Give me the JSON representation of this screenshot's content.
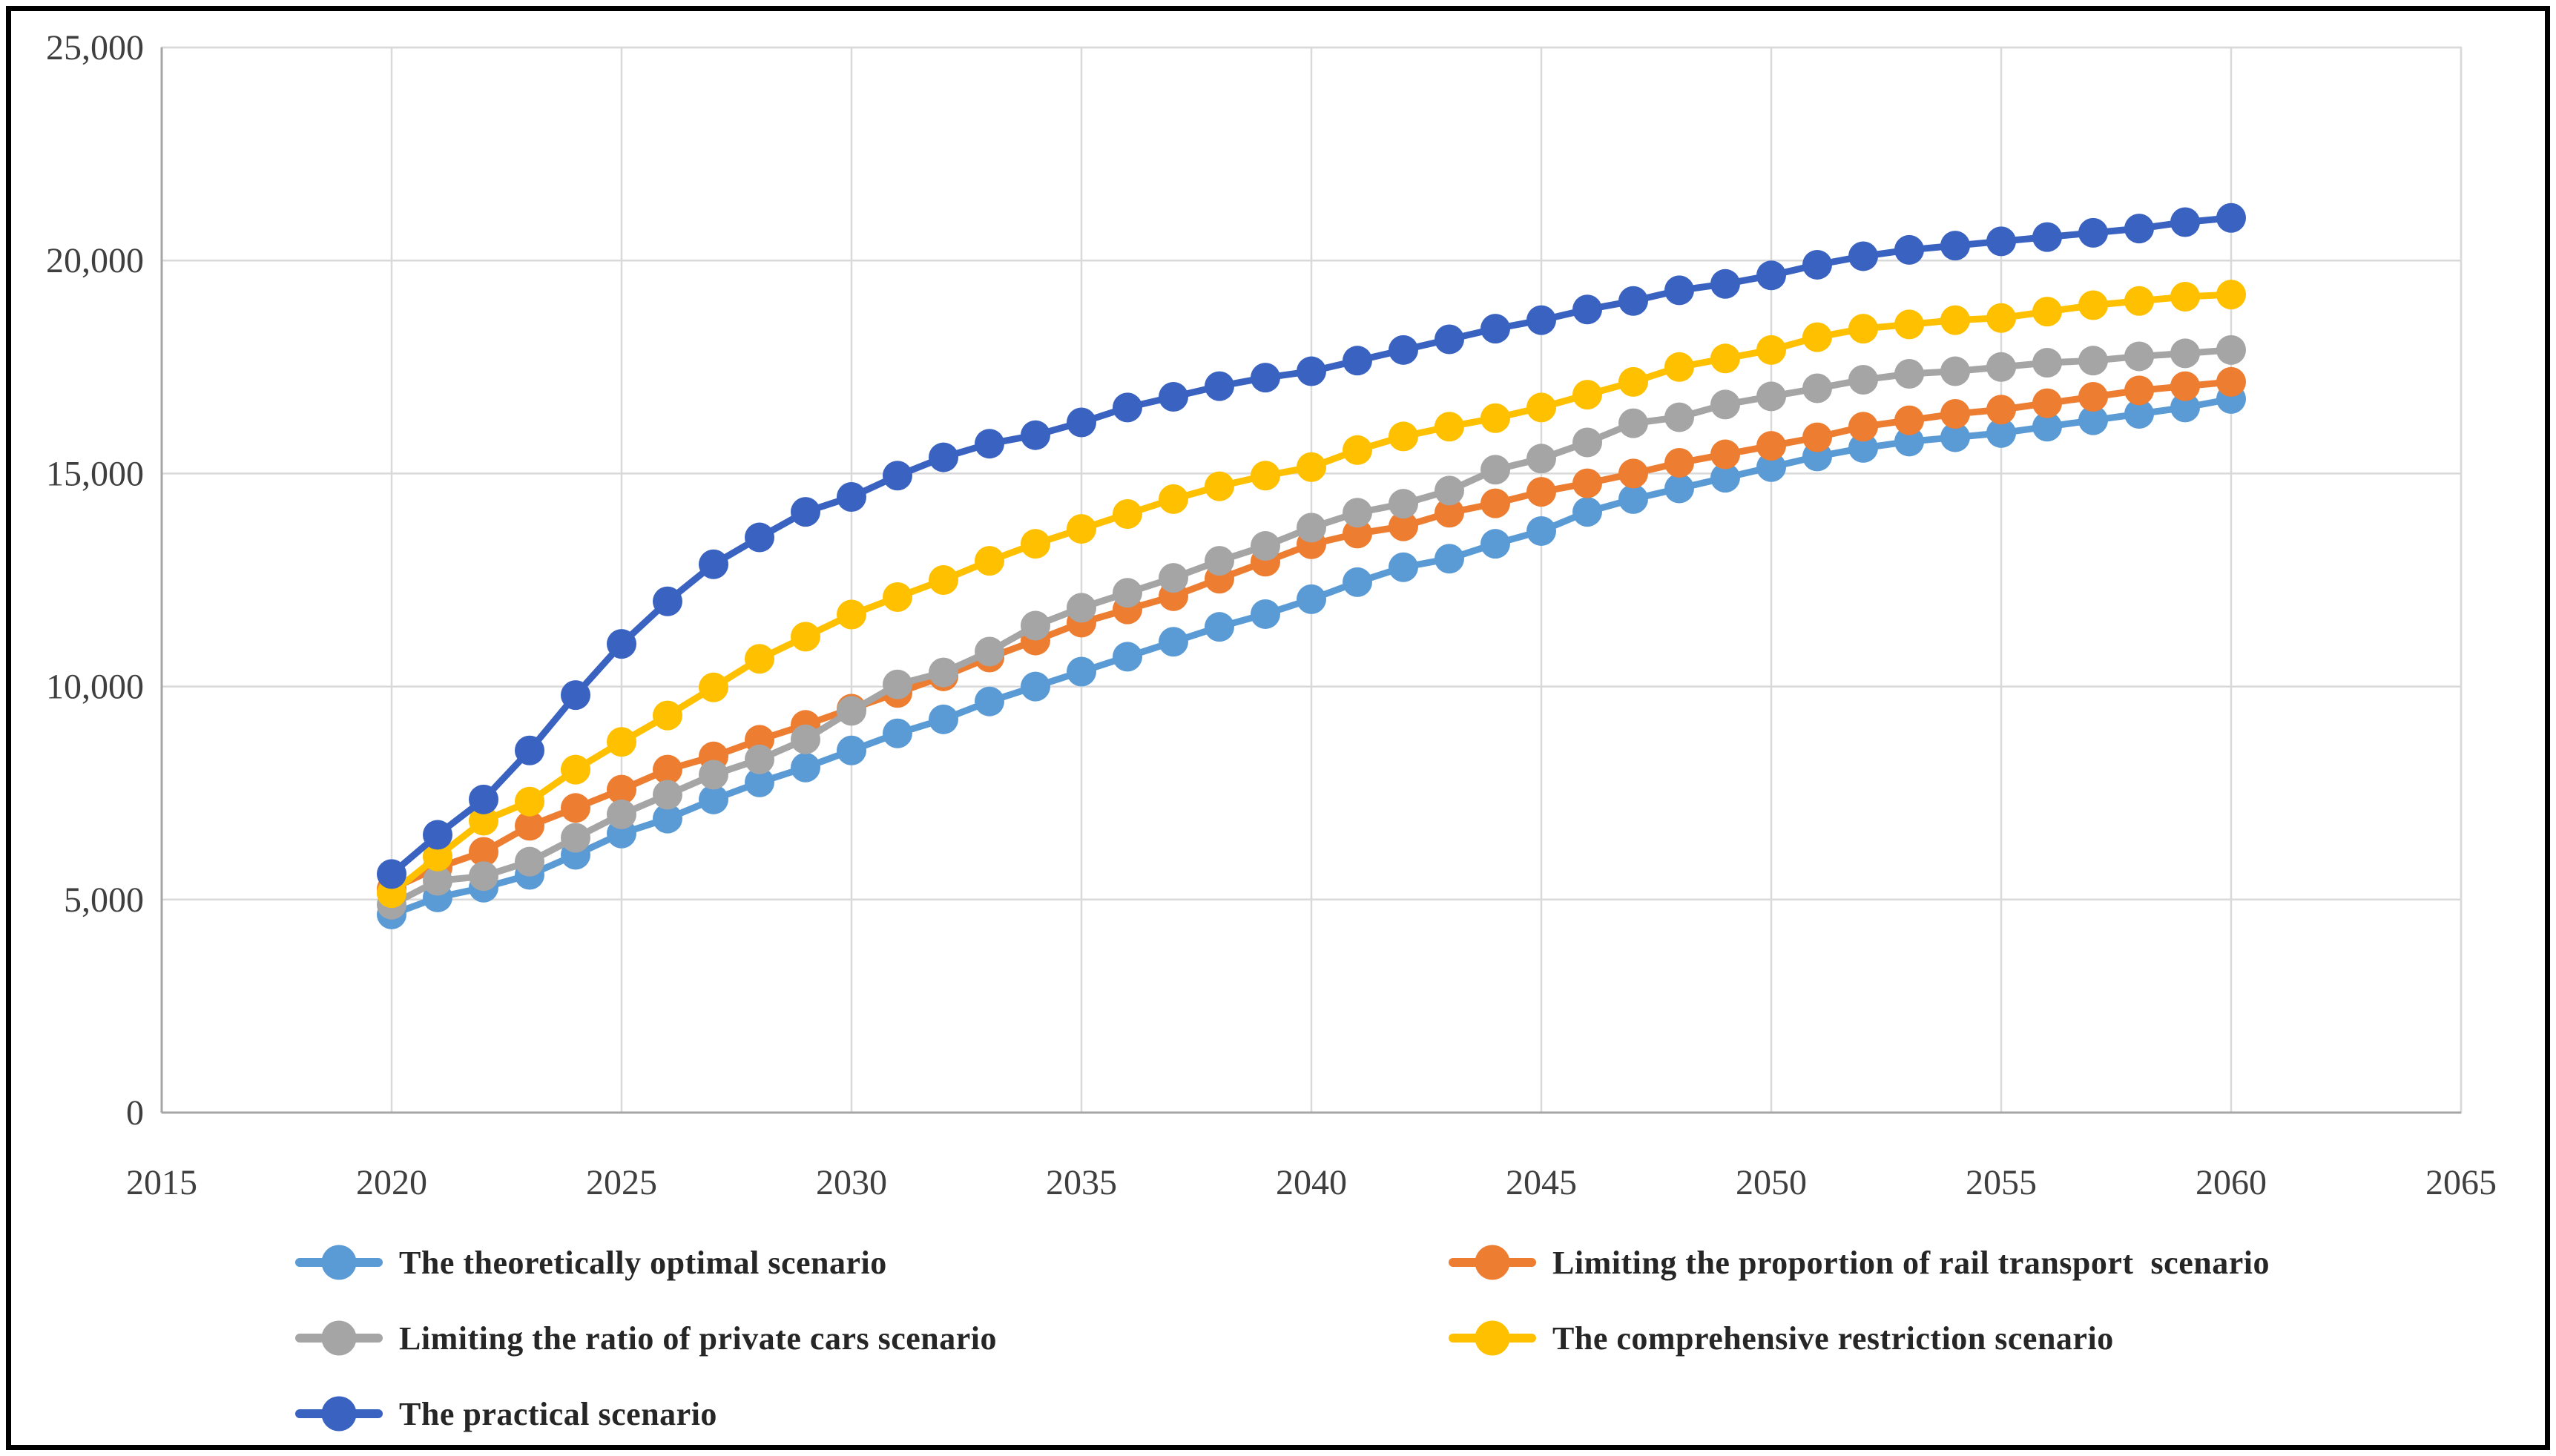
{
  "chart_data": {
    "type": "line",
    "title": "",
    "xlabel": "",
    "ylabel": "",
    "xlim": [
      2015,
      2065
    ],
    "ylim": [
      0,
      25000
    ],
    "grid": true,
    "legend_position": "bottom-left-two-columns",
    "x_ticks": [
      2015,
      2020,
      2025,
      2030,
      2035,
      2040,
      2045,
      2050,
      2055,
      2060,
      2065
    ],
    "y_ticks": [
      {
        "label": "0",
        "value": 0
      },
      {
        "label": "5,000",
        "value": 5000
      },
      {
        "label": "10,000",
        "value": 10000
      },
      {
        "label": "15,000",
        "value": 15000
      },
      {
        "label": "20,000",
        "value": 20000
      },
      {
        "label": "25,000",
        "value": 25000
      }
    ],
    "years": [
      2020,
      2021,
      2022,
      2023,
      2024,
      2025,
      2026,
      2027,
      2028,
      2029,
      2030,
      2031,
      2032,
      2033,
      2034,
      2035,
      2036,
      2037,
      2038,
      2039,
      2040,
      2041,
      2042,
      2043,
      2044,
      2045,
      2046,
      2047,
      2048,
      2049,
      2050,
      2051,
      2052,
      2053,
      2054,
      2055,
      2056,
      2057,
      2058,
      2059,
      2060
    ],
    "series": [
      {
        "name": "The theoretically optimal scenario",
        "color": "#5B9BD5",
        "marker": "circle",
        "values": [
          4650,
          5050,
          5280,
          5580,
          6050,
          6550,
          6900,
          7350,
          7750,
          8100,
          8500,
          8900,
          9230,
          9650,
          10000,
          10350,
          10700,
          11050,
          11400,
          11700,
          12050,
          12450,
          12800,
          13000,
          13350,
          13650,
          14100,
          14400,
          14650,
          14900,
          15150,
          15400,
          15600,
          15750,
          15850,
          15950,
          16100,
          16250,
          16400,
          16550,
          16750
        ]
      },
      {
        "name": "Limiting the proportion of rail transport  scenario",
        "color": "#ED7D31",
        "marker": "circle",
        "values": [
          5250,
          5750,
          6120,
          6730,
          7150,
          7580,
          8050,
          8360,
          8750,
          9100,
          9480,
          9850,
          10240,
          10680,
          11080,
          11500,
          11810,
          12120,
          12530,
          12930,
          13340,
          13590,
          13760,
          14080,
          14300,
          14570,
          14770,
          15000,
          15250,
          15450,
          15650,
          15850,
          16100,
          16250,
          16400,
          16500,
          16650,
          16800,
          16950,
          17050,
          17150
        ]
      },
      {
        "name": "Limiting the ratio of private cars scenario",
        "color": "#A5A5A5",
        "marker": "circle",
        "values": [
          4880,
          5440,
          5550,
          5890,
          6450,
          7000,
          7460,
          7930,
          8290,
          8760,
          9430,
          10050,
          10330,
          10820,
          11430,
          11850,
          12200,
          12550,
          12950,
          13300,
          13730,
          14080,
          14290,
          14600,
          15090,
          15350,
          15730,
          16180,
          16320,
          16620,
          16810,
          17000,
          17200,
          17340,
          17400,
          17500,
          17600,
          17650,
          17750,
          17820,
          17900
        ]
      },
      {
        "name": "The comprehensive restriction scenario",
        "color": "#FFC000",
        "marker": "circle",
        "values": [
          5150,
          6010,
          6850,
          7300,
          8050,
          8700,
          9320,
          9980,
          10650,
          11170,
          11690,
          12100,
          12500,
          12950,
          13350,
          13700,
          14050,
          14400,
          14700,
          14950,
          15150,
          15550,
          15870,
          16100,
          16300,
          16550,
          16850,
          17150,
          17500,
          17700,
          17900,
          18200,
          18400,
          18500,
          18600,
          18650,
          18800,
          18950,
          19050,
          19150,
          19200
        ]
      },
      {
        "name": "The practical scenario",
        "color": "#3A62C1",
        "marker": "circle",
        "values": [
          5600,
          6520,
          7350,
          8500,
          9800,
          11000,
          12000,
          12870,
          13500,
          14100,
          14450,
          14950,
          15380,
          15700,
          15900,
          16200,
          16550,
          16800,
          17050,
          17250,
          17400,
          17650,
          17900,
          18150,
          18400,
          18600,
          18850,
          19050,
          19300,
          19450,
          19650,
          19900,
          20100,
          20250,
          20350,
          20450,
          20550,
          20650,
          20750,
          20900,
          21000
        ]
      }
    ]
  },
  "style": {
    "gridline_color": "#D9D9D9",
    "axis_line_color": "#A6A6A6",
    "tick_label_color": "#3F3F3F",
    "legend_text_color": "#262626",
    "outer_border_color": "#000000",
    "background": "#FFFFFF"
  }
}
